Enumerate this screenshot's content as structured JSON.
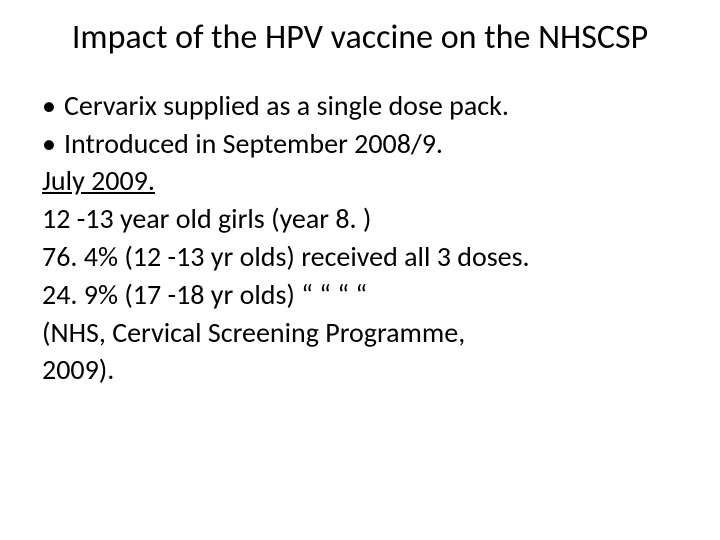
{
  "title": "Impact of the HPV vaccine on the NHSCSP",
  "bullets": [
    "Cervarix supplied as a single dose pack.",
    "Introduced in September 2008/9."
  ],
  "underlined": "July 2009.",
  "lines": [
    "12 -13 year old girls (year 8. )",
    "76. 4% (12 -13 yr olds) received all 3 doses.",
    "24. 9% (17 -18 yr olds)    “            “   “    “",
    "(NHS, Cervical Screening Programme,",
    "2009)."
  ],
  "colors": {
    "background": "#ffffff",
    "text": "#000000"
  },
  "typography": {
    "title_fontsize": 34,
    "body_fontsize": 28,
    "font_family": "Calibri"
  }
}
